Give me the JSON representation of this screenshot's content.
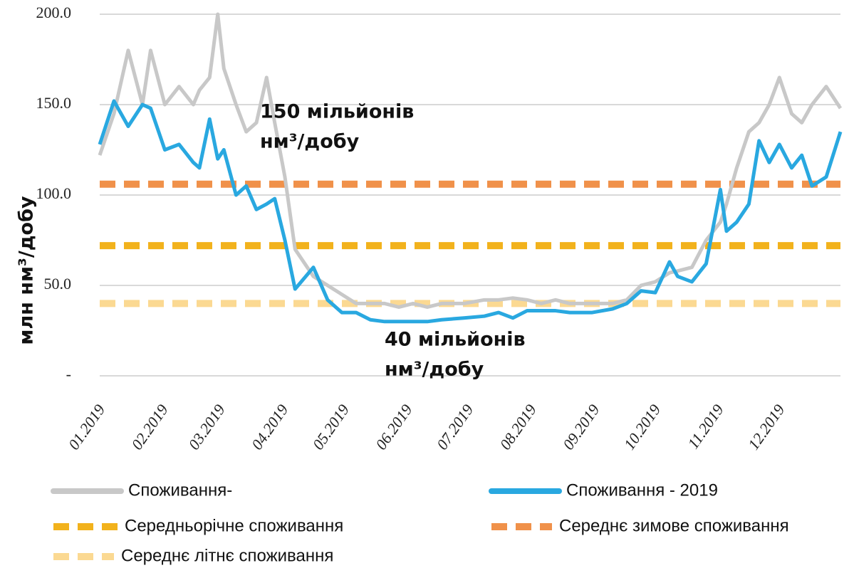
{
  "chart_data": {
    "type": "line",
    "y_label": "млн нм³/добу",
    "annotations": [
      [
        "150 мільйонів",
        "нм³/добу"
      ],
      [
        "40 мільйонів",
        "нм³/добу"
      ]
    ],
    "x": [
      0,
      7,
      14,
      21,
      25,
      32,
      39,
      46,
      49,
      54,
      58,
      61,
      67,
      72,
      77,
      82,
      86,
      91,
      96,
      105,
      112,
      119,
      126,
      133,
      140,
      147,
      154,
      161,
      168,
      179,
      189,
      196,
      203,
      210,
      217,
      224,
      231,
      242,
      252,
      259,
      266,
      273,
      280,
      284,
      291,
      298,
      305,
      308,
      313,
      319,
      324,
      329,
      334,
      340,
      345,
      350,
      357,
      364
    ],
    "xlim": [
      0,
      364
    ],
    "xticks": [
      {
        "value": 0,
        "label": "01.2019"
      },
      {
        "value": 31,
        "label": "02.2019"
      },
      {
        "value": 59,
        "label": "03.2019"
      },
      {
        "value": 90,
        "label": "04.2019"
      },
      {
        "value": 120,
        "label": "05.2019"
      },
      {
        "value": 151,
        "label": "06.2019"
      },
      {
        "value": 181,
        "label": "07.2019"
      },
      {
        "value": 212,
        "label": "08.2019"
      },
      {
        "value": 243,
        "label": "09.2019"
      },
      {
        "value": 273,
        "label": "10.2019"
      },
      {
        "value": 304,
        "label": "11.2019"
      },
      {
        "value": 334,
        "label": "12.2019"
      }
    ],
    "ylim": [
      0,
      200
    ],
    "yticks": [
      {
        "value": 0,
        "label": "-"
      },
      {
        "value": 50,
        "label": "50.0"
      },
      {
        "value": 100,
        "label": "100.0"
      },
      {
        "value": 150,
        "label": "150.0"
      },
      {
        "value": 200,
        "label": "200.0"
      }
    ],
    "grid": true,
    "series": [
      {
        "name": "Споживання-",
        "color": "#c8c8c8",
        "values": [
          122,
          145,
          180,
          150,
          180,
          150,
          160,
          150,
          158,
          165,
          200,
          170,
          150,
          135,
          140,
          165,
          140,
          110,
          70,
          55,
          50,
          45,
          40,
          40,
          40,
          38,
          40,
          38,
          40,
          40,
          42,
          42,
          43,
          42,
          40,
          42,
          40,
          40,
          40,
          42,
          50,
          52,
          57,
          58,
          60,
          75,
          85,
          95,
          115,
          135,
          140,
          150,
          165,
          145,
          140,
          150,
          160,
          148
        ]
      },
      {
        "name": "Споживання - 2019",
        "color": "#29a8e0",
        "values": [
          128,
          152,
          138,
          150,
          148,
          125,
          128,
          118,
          115,
          142,
          120,
          125,
          100,
          105,
          92,
          95,
          98,
          75,
          48,
          60,
          42,
          35,
          35,
          31,
          30,
          30,
          30,
          30,
          31,
          32,
          33,
          35,
          32,
          36,
          36,
          36,
          35,
          35,
          37,
          40,
          47,
          46,
          63,
          55,
          52,
          62,
          103,
          80,
          85,
          95,
          130,
          118,
          128,
          115,
          122,
          105,
          110,
          135
        ]
      }
    ],
    "reference_lines": [
      {
        "name": "Середньорічне споживання",
        "color": "#f2b21c",
        "value": 72
      },
      {
        "name": "Середнє зимове споживання",
        "color": "#f0914a",
        "value": 106
      },
      {
        "name": "Середнє літнє споживання",
        "color": "#fbd992",
        "value": 40
      }
    ]
  }
}
